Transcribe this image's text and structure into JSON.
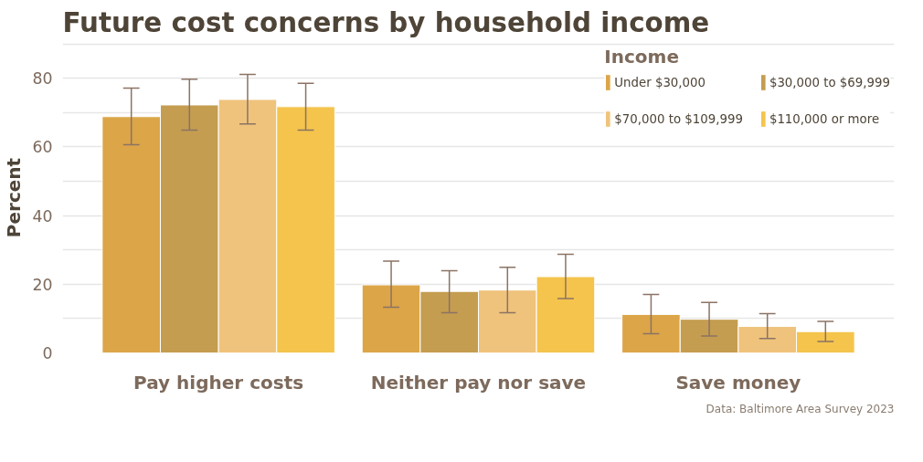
{
  "chart_data": {
    "type": "bar",
    "title": "Future cost concerns by household income",
    "ylabel": "Percent",
    "legend_title": "Income",
    "categories": [
      "Pay higher costs",
      "Neither pay nor save",
      "Save money"
    ],
    "series": [
      {
        "name": "Under $30,000",
        "color": "#dba548",
        "values": [
          68.8,
          19.8,
          11.2
        ],
        "errors": [
          [
            60.6,
            77.1
          ],
          [
            13.3,
            26.7
          ],
          [
            5.6,
            17.0
          ]
        ]
      },
      {
        "name": "$30,000 to $69,999",
        "color": "#c49d50",
        "values": [
          72.2,
          17.9,
          9.8
        ],
        "errors": [
          [
            64.9,
            79.7
          ],
          [
            11.7,
            23.9
          ],
          [
            4.9,
            14.7
          ]
        ]
      },
      {
        "name": "$70,000 to $109,999",
        "color": "#efc37c",
        "values": [
          73.8,
          18.3,
          7.7
        ],
        "errors": [
          [
            66.7,
            81.1
          ],
          [
            11.7,
            24.9
          ],
          [
            4.2,
            11.4
          ]
        ]
      },
      {
        "name": "$110,000 or more",
        "color": "#f4c44c",
        "values": [
          71.7,
          22.2,
          6.2
        ],
        "errors": [
          [
            64.9,
            78.5
          ],
          [
            15.8,
            28.7
          ],
          [
            3.3,
            9.2
          ]
        ]
      }
    ],
    "ylim": [
      0,
      90.4
    ],
    "yticks": [
      0,
      {
        "value": 10,
        "label": null
      },
      20,
      {
        "value": 30,
        "label": null
      },
      40,
      {
        "value": 50,
        "label": null
      },
      60,
      {
        "value": 70,
        "label": null
      },
      80,
      {
        "value": 90,
        "label": null
      }
    ],
    "grid": "y",
    "legend": "top right",
    "annotations": [
      "Data: Baltimore Area Survey 2023"
    ]
  }
}
